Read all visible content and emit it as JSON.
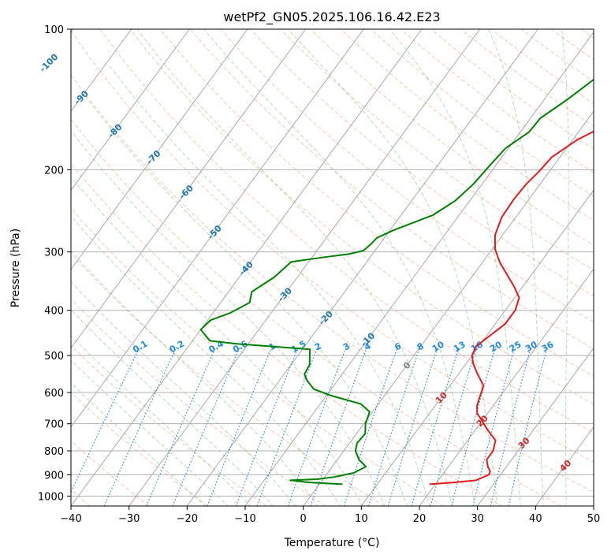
{
  "chart_data": {
    "type": "line",
    "title": "wetPf2_GN05.2025.106.16.42.E23",
    "xlabel": "Temperature (°C)",
    "ylabel": "Pressure (hPa)",
    "xlim": [
      -40,
      50
    ],
    "ylim": [
      1050,
      100
    ],
    "y_scale": "log",
    "grid": true,
    "x_ticks": [
      -40,
      -30,
      -20,
      -10,
      0,
      10,
      20,
      30,
      40,
      50
    ],
    "y_ticks": [
      100,
      200,
      300,
      400,
      500,
      600,
      700,
      800,
      900,
      1000
    ],
    "colors": {
      "temperature": "#e41a1c",
      "dewpoint": "#008000",
      "isotherm": "#8c8c8c",
      "dry_adiabat": "#ff7f50",
      "moist_adiabat": "#2ca02c",
      "mixing_ratio": "#1e88e5",
      "isotherm_label": "#1f77b4",
      "adiabat_label": "#d62728"
    },
    "series": [
      {
        "key": "temperature",
        "values": [
          [
            19.0,
            943
          ],
          [
            23.0,
            935
          ],
          [
            26.5,
            925
          ],
          [
            28.0,
            900
          ],
          [
            27.8,
            885
          ],
          [
            26.8,
            865
          ],
          [
            25.7,
            835
          ],
          [
            25.7,
            800
          ],
          [
            24.8,
            760
          ],
          [
            22.0,
            720
          ],
          [
            20.0,
            690
          ],
          [
            18.2,
            665
          ],
          [
            17.2,
            640
          ],
          [
            16.5,
            610
          ],
          [
            15.8,
            580
          ],
          [
            13.3,
            548
          ],
          [
            11.2,
            520
          ],
          [
            10.0,
            500
          ],
          [
            9.5,
            478
          ],
          [
            10.7,
            450
          ],
          [
            11.7,
            428
          ],
          [
            11.7,
            400
          ],
          [
            10.8,
            376
          ],
          [
            8.4,
            355
          ],
          [
            5.7,
            335
          ],
          [
            3.0,
            316
          ],
          [
            0.5,
            296
          ],
          [
            -1.3,
            276
          ],
          [
            -2.4,
            253
          ],
          [
            -2.6,
            232
          ],
          [
            -2.4,
            215
          ],
          [
            -1.8,
            202
          ],
          [
            -1.4,
            188
          ],
          [
            0.7,
            173
          ],
          [
            4.5,
            158
          ],
          [
            7.0,
            150
          ],
          [
            8.8,
            138
          ],
          [
            10.3,
            125
          ],
          [
            11.7,
            116
          ],
          [
            12.7,
            108
          ],
          [
            13.3,
            100
          ]
        ]
      },
      {
        "key": "dewpoint",
        "values": [
          [
            4.0,
            943
          ],
          [
            -2.0,
            935
          ],
          [
            -5.5,
            925
          ],
          [
            -1.0,
            920
          ],
          [
            1.7,
            910
          ],
          [
            4.5,
            892
          ],
          [
            5.8,
            865
          ],
          [
            3.7,
            835
          ],
          [
            2.0,
            800
          ],
          [
            1.3,
            770
          ],
          [
            1.5,
            735
          ],
          [
            0.3,
            700
          ],
          [
            -0.5,
            660
          ],
          [
            -3.0,
            635
          ],
          [
            -9.0,
            610
          ],
          [
            -13.0,
            590
          ],
          [
            -15.3,
            565
          ],
          [
            -16.5,
            548
          ],
          [
            -16.8,
            523
          ],
          [
            -17.8,
            503
          ],
          [
            -18.7,
            485
          ],
          [
            -32.0,
            472
          ],
          [
            -37.0,
            465
          ],
          [
            -40.0,
            440
          ],
          [
            -39.5,
            420
          ],
          [
            -37.0,
            405
          ],
          [
            -35.0,
            385
          ],
          [
            -36.0,
            365
          ],
          [
            -34.0,
            340
          ],
          [
            -33.0,
            315
          ],
          [
            -28.0,
            308
          ],
          [
            -24.0,
            303
          ],
          [
            -22.0,
            298
          ],
          [
            -21.5,
            288
          ],
          [
            -21.3,
            280
          ],
          [
            -19.5,
            270
          ],
          [
            -14.5,
            250
          ],
          [
            -12.5,
            233
          ],
          [
            -11.5,
            215
          ],
          [
            -11.0,
            195
          ],
          [
            -10.5,
            180
          ],
          [
            -8.5,
            166
          ],
          [
            -8.3,
            155
          ],
          [
            -6.8,
            146
          ],
          [
            -5.8,
            140
          ],
          [
            -4.0,
            128
          ],
          [
            -2.8,
            120
          ],
          [
            -0.5,
            110
          ],
          [
            1.8,
            100
          ]
        ]
      }
    ],
    "mixing_ratio_labels": [
      "0.1",
      "0.2",
      "0.4",
      "0.6",
      "1",
      "1.5",
      "2",
      "3",
      "4",
      "6",
      "8",
      "10",
      "13",
      "16",
      "20",
      "25",
      "30",
      "36"
    ],
    "mixing_ratio_values": [
      0.1,
      0.2,
      0.4,
      0.6,
      1,
      1.5,
      2,
      3,
      4,
      6,
      8,
      10,
      13,
      16,
      20,
      25,
      30,
      36
    ],
    "isotherm_labels": [
      "-100",
      "-90",
      "-80",
      "-70",
      "-60",
      "-50",
      "-40",
      "-30",
      "-20",
      "-10",
      "0"
    ],
    "isotherm_values": [
      -100,
      -90,
      -80,
      -70,
      -60,
      -50,
      -40,
      -30,
      -20,
      -10,
      0
    ],
    "adiabat_labels": [
      "10",
      "20",
      "30",
      "40"
    ],
    "adiabat_values": [
      10,
      20,
      30,
      40
    ]
  }
}
